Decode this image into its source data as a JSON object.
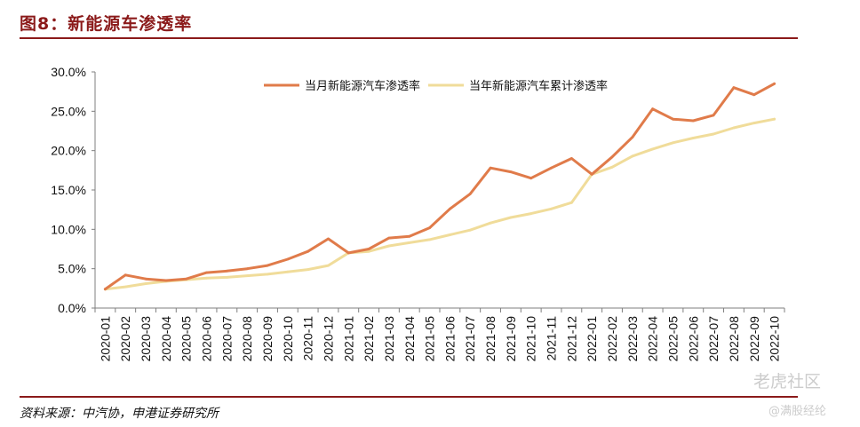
{
  "figure": {
    "title": "图8：新能源车渗透率",
    "source": "资料来源：中汽协，申港证券研究所"
  },
  "watermark": {
    "line1": "老虎社区",
    "line2": "@满股经纶"
  },
  "chart_data": {
    "type": "line",
    "categories": [
      "2020-01",
      "2020-02",
      "2020-03",
      "2020-04",
      "2020-05",
      "2020-06",
      "2020-07",
      "2020-08",
      "2020-09",
      "2020-10",
      "2020-11",
      "2020-12",
      "2021-01",
      "2021-02",
      "2021-03",
      "2021-04",
      "2021-05",
      "2021-06",
      "2021-07",
      "2021-08",
      "2021-09",
      "2021-10",
      "2021-11",
      "2021-12",
      "2022-01",
      "2022-02",
      "2022-03",
      "2022-04",
      "2022-05",
      "2022-06",
      "2022-07",
      "2022-08",
      "2022-09",
      "2022-10"
    ],
    "series": [
      {
        "name": "当月新能源汽车渗透率",
        "color": "#e07b4a",
        "values": [
          2.4,
          4.2,
          3.7,
          3.5,
          3.7,
          4.5,
          4.7,
          5.0,
          5.4,
          6.2,
          7.2,
          8.8,
          7.0,
          7.5,
          8.9,
          9.1,
          10.2,
          12.6,
          14.5,
          17.8,
          17.3,
          16.5,
          17.8,
          19.0,
          17.0,
          19.2,
          21.7,
          25.3,
          24.0,
          23.8,
          24.5,
          28.0,
          27.1,
          28.5
        ]
      },
      {
        "name": "当年新能源汽车累计渗透率",
        "color": "#f0dc9a",
        "values": [
          2.4,
          2.7,
          3.1,
          3.4,
          3.6,
          3.8,
          3.9,
          4.1,
          4.3,
          4.6,
          4.9,
          5.4,
          7.0,
          7.2,
          7.9,
          8.3,
          8.7,
          9.3,
          9.9,
          10.8,
          11.5,
          12.0,
          12.6,
          13.4,
          17.0,
          17.9,
          19.3,
          20.2,
          21.0,
          21.6,
          22.1,
          22.9,
          23.5,
          24.0
        ]
      }
    ],
    "y_ticks": [
      "0.0%",
      "5.0%",
      "10.0%",
      "15.0%",
      "20.0%",
      "25.0%",
      "30.0%"
    ],
    "ylim": [
      0,
      30
    ],
    "grid": false,
    "legend_position": "top"
  }
}
